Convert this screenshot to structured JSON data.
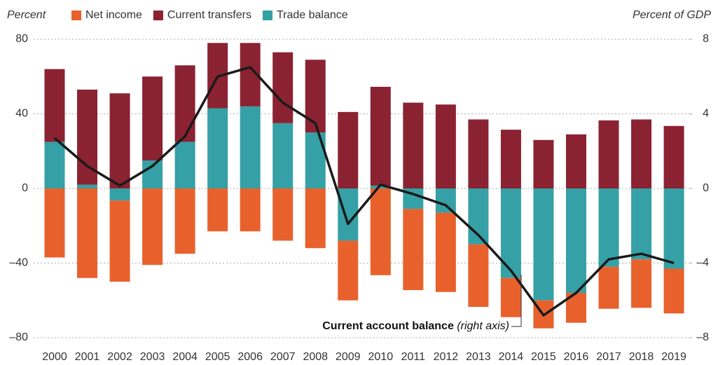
{
  "chart_data": {
    "type": "bar",
    "y_label": "Percent",
    "y2_label": "Percent of GDP",
    "categories": [
      "2000",
      "2001",
      "2002",
      "2003",
      "2004",
      "2005",
      "2006",
      "2007",
      "2008",
      "2009",
      "2010",
      "2011",
      "2012",
      "2013",
      "2014",
      "2015",
      "2016",
      "2017",
      "2018",
      "2019"
    ],
    "stacked": true,
    "series": [
      {
        "name": "Net income",
        "color": "#e8612c",
        "values": [
          -37,
          -48,
          -43.5,
          -41,
          -35,
          -23,
          -23,
          -28,
          -32,
          -32,
          -46.5,
          -43.5,
          -42.5,
          -33.5,
          -21,
          -15,
          -16,
          -22.5,
          -26,
          -24
        ]
      },
      {
        "name": "Current transfers",
        "color": "#8b2232",
        "values": [
          39,
          51,
          51,
          45,
          41,
          35,
          34,
          38,
          39,
          41,
          53,
          46,
          45,
          37,
          31.5,
          26,
          29,
          36.5,
          37,
          33.5
        ]
      },
      {
        "name": "Trade balance",
        "color": "#35a0a5",
        "values": [
          25,
          2,
          -6.5,
          15,
          25,
          43,
          44,
          35,
          30,
          -28,
          1.5,
          -11,
          -13,
          -30,
          -48,
          -60,
          -56,
          -42,
          -38,
          -43
        ]
      },
      {
        "name": "Current account balance",
        "type": "line",
        "axis": "y2",
        "color": "#1a1a1a",
        "values": [
          2.7,
          1.2,
          0.15,
          1.2,
          2.8,
          6.0,
          6.5,
          4.6,
          3.5,
          -1.9,
          0.2,
          -0.3,
          -0.9,
          -2.5,
          -4.4,
          -6.8,
          -5.6,
          -3.8,
          -3.5,
          -4.0
        ]
      }
    ],
    "annotation": {
      "label": "Current account balance",
      "note": "(right axis)"
    },
    "ylim": [
      -80,
      80
    ],
    "yticks": [
      {
        "value": -80,
        "label": "–80"
      },
      {
        "value": -40,
        "label": "–40"
      },
      0,
      40,
      80
    ],
    "y2lim": [
      -8,
      8
    ],
    "y2ticks": [
      {
        "value": -8,
        "label": "–8"
      },
      {
        "value": -4,
        "label": "–4"
      },
      0,
      4,
      8
    ],
    "grid": true,
    "legend": "top-left"
  }
}
